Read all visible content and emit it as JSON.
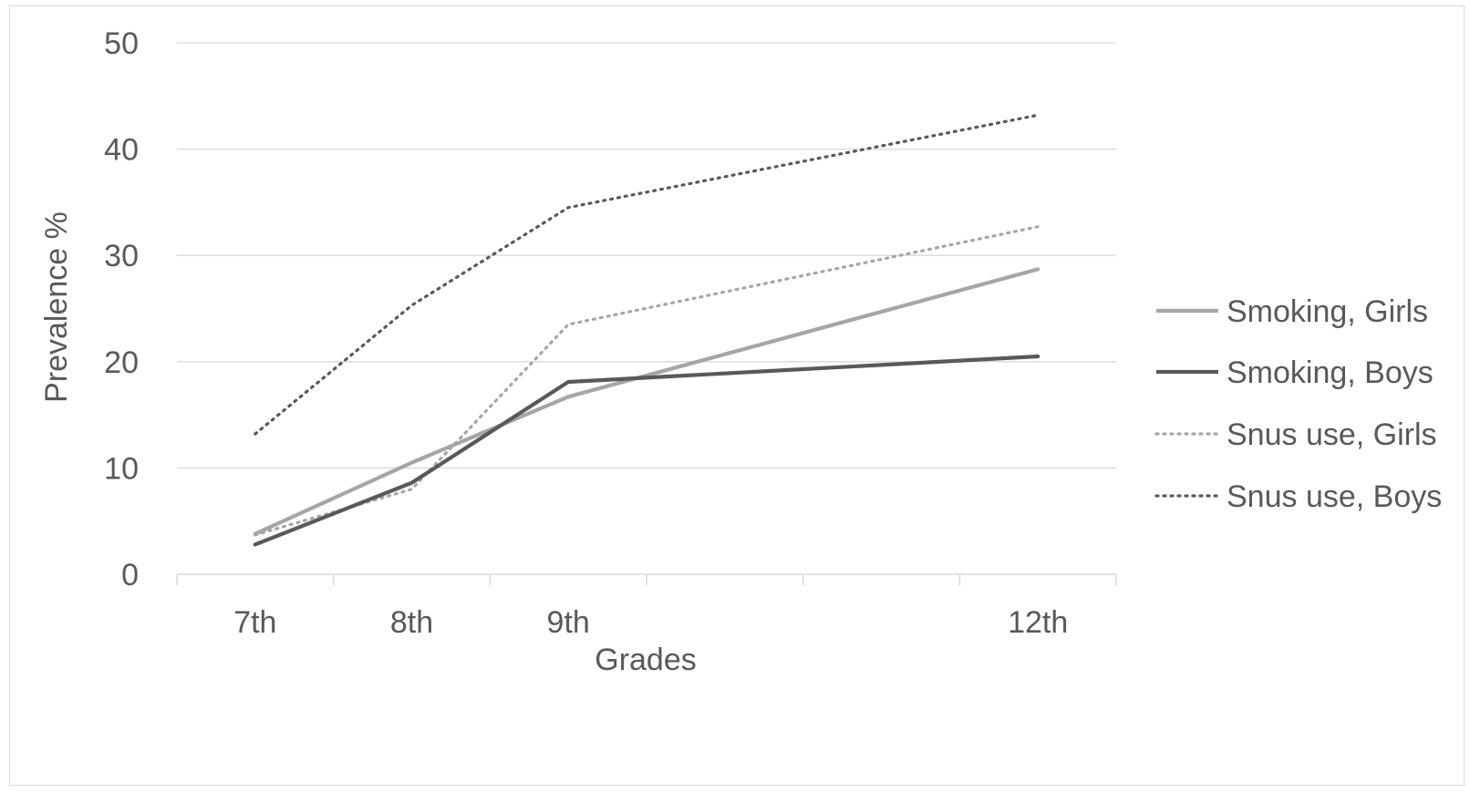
{
  "chart_data": {
    "type": "line",
    "xlabel": "Grades",
    "ylabel": "Prevalence %",
    "ylim": [
      0,
      50
    ],
    "yticks": [
      "0",
      "10",
      "20",
      "30",
      "40",
      "50"
    ],
    "x_positions": [
      7,
      8,
      9,
      10,
      11,
      12
    ],
    "x_tick_labels": {
      "7": "7th",
      "8": "8th",
      "9": "9th",
      "12": "12th"
    },
    "grid": true,
    "legend": "right",
    "series": [
      {
        "name": "Smoking, Girls",
        "x": [
          7,
          8,
          9,
          12
        ],
        "values": [
          3.8,
          10.5,
          16.7,
          28.7
        ],
        "color": "#a6a6a6",
        "dash": "solid"
      },
      {
        "name": "Smoking, Boys",
        "x": [
          7,
          8,
          9,
          12
        ],
        "values": [
          2.8,
          8.6,
          18.1,
          20.5
        ],
        "color": "#595959",
        "dash": "solid"
      },
      {
        "name": "Snus use, Girls",
        "x": [
          7,
          8,
          9,
          12
        ],
        "values": [
          3.7,
          8.0,
          23.5,
          32.7
        ],
        "color": "#a6a6a6",
        "dash": "dotted"
      },
      {
        "name": "Snus use, Boys",
        "x": [
          7,
          8,
          9,
          12
        ],
        "values": [
          13.2,
          25.3,
          34.5,
          43.2
        ],
        "color": "#595959",
        "dash": "dotted"
      }
    ]
  }
}
